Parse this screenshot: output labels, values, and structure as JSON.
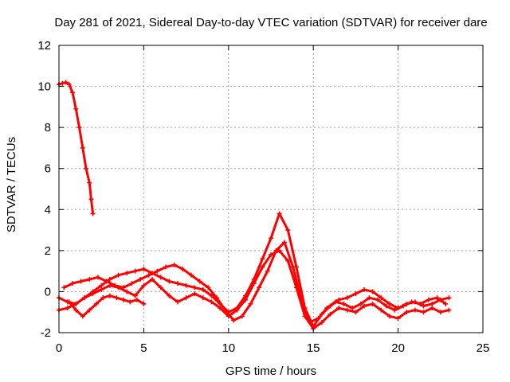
{
  "chart_data": {
    "type": "scatter",
    "title": "Day 281 of 2021, Sidereal Day-to-day VTEC variation (SDTVAR) for receiver dare",
    "xlabel": "GPS time / hours",
    "ylabel": "SDTVAR / TECUs",
    "xlim": [
      0,
      25
    ],
    "ylim": [
      -2,
      12
    ],
    "xticks": [
      0,
      5,
      10,
      15,
      20,
      25
    ],
    "yticks": [
      -2,
      0,
      2,
      4,
      6,
      8,
      10,
      12
    ],
    "grid": true,
    "marker": "+",
    "series": [
      {
        "name": "sdtvar",
        "color": "#ff0000",
        "tracks": [
          {
            "x": [
              0.0,
              0.2,
              0.4,
              0.6,
              0.8,
              1.0,
              1.2,
              1.4,
              1.6,
              1.8,
              1.9,
              2.0
            ],
            "y": [
              10.1,
              10.15,
              10.2,
              10.1,
              9.7,
              8.9,
              8.0,
              7.0,
              6.0,
              5.3,
              4.5,
              3.8
            ]
          },
          {
            "x": [
              0.0,
              0.5,
              1.0,
              1.5,
              2.0,
              2.5,
              3.0,
              3.5,
              4.0,
              4.5,
              5.0,
              5.5,
              6.0,
              6.5,
              7.0,
              7.5,
              8.0,
              8.5,
              9.0,
              9.5,
              10.0,
              10.5,
              11.0,
              11.5,
              12.0,
              12.5,
              13.0,
              13.5,
              14.0,
              14.5,
              15.0,
              15.5,
              16.0,
              16.5,
              17.0,
              17.5,
              18.0,
              18.5,
              19.0,
              19.5,
              20.0,
              20.5,
              21.0,
              21.5,
              22.0,
              22.5,
              23.0
            ],
            "y": [
              -0.3,
              -0.5,
              -0.6,
              -0.3,
              0.0,
              0.3,
              0.6,
              0.8,
              0.9,
              1.0,
              1.1,
              0.9,
              0.7,
              0.5,
              0.4,
              0.3,
              0.2,
              0.1,
              -0.2,
              -0.6,
              -1.0,
              -0.8,
              -0.2,
              0.6,
              1.6,
              2.6,
              3.8,
              3.0,
              1.2,
              -0.8,
              -1.7,
              -1.1,
              -0.7,
              -0.4,
              -0.3,
              -0.1,
              0.1,
              0.0,
              -0.3,
              -0.6,
              -0.8,
              -0.6,
              -0.5,
              -0.7,
              -0.6,
              -0.4,
              -0.3
            ]
          },
          {
            "x": [
              0.3,
              0.8,
              1.3,
              1.8,
              2.3,
              2.8,
              3.3,
              3.8,
              4.3,
              4.8,
              5.3,
              5.8,
              6.3,
              6.8,
              7.3,
              7.8,
              8.3,
              8.8,
              9.3,
              9.8,
              10.3,
              10.8,
              11.3,
              11.8,
              12.3,
              12.8,
              13.3,
              13.8,
              14.3,
              14.8,
              15.3,
              15.8,
              16.3,
              16.8,
              17.3,
              17.8,
              18.3,
              18.8,
              19.3,
              19.8,
              20.3,
              20.8,
              21.3,
              21.8,
              22.3,
              22.8
            ],
            "y": [
              0.2,
              0.4,
              0.5,
              0.6,
              0.7,
              0.5,
              0.3,
              0.2,
              0.4,
              0.6,
              0.8,
              1.0,
              1.2,
              1.3,
              1.1,
              0.8,
              0.5,
              0.2,
              -0.3,
              -0.9,
              -1.4,
              -1.2,
              -0.6,
              0.2,
              1.0,
              2.0,
              2.4,
              1.2,
              -0.4,
              -1.5,
              -1.3,
              -0.8,
              -0.5,
              -0.6,
              -0.8,
              -0.6,
              -0.3,
              -0.4,
              -0.7,
              -0.9,
              -0.7,
              -0.5,
              -0.6,
              -0.4,
              -0.3,
              -0.6
            ]
          },
          {
            "x": [
              0.0,
              0.5,
              1.0,
              1.5,
              2.0,
              2.5,
              3.0,
              3.5,
              4.0,
              4.5,
              5.0,
              5.5,
              6.0,
              6.5,
              7.0,
              7.5,
              8.0,
              8.5,
              9.0,
              9.5,
              10.0,
              10.5,
              11.0,
              11.5,
              12.0,
              12.5,
              13.0,
              13.5,
              14.0,
              14.5,
              15.0,
              15.5,
              16.0,
              16.5,
              17.0,
              17.5,
              18.0,
              18.5,
              19.0,
              19.5,
              20.0,
              20.5,
              21.0,
              21.5,
              22.0,
              22.5,
              23.0
            ],
            "y": [
              -0.9,
              -0.8,
              -0.6,
              -0.3,
              -0.1,
              0.1,
              0.3,
              0.2,
              0.0,
              -0.2,
              0.3,
              0.6,
              0.2,
              -0.2,
              -0.5,
              -0.3,
              -0.1,
              -0.3,
              -0.5,
              -0.8,
              -1.2,
              -0.9,
              -0.4,
              0.4,
              1.2,
              1.8,
              2.0,
              1.5,
              0.2,
              -1.2,
              -1.8,
              -1.5,
              -1.1,
              -0.8,
              -0.9,
              -1.0,
              -0.7,
              -0.6,
              -0.9,
              -1.2,
              -1.3,
              -1.0,
              -0.9,
              -1.0,
              -0.8,
              -1.0,
              -0.9
            ]
          },
          {
            "x": [
              0.6,
              1.0,
              1.4,
              1.8,
              2.2,
              2.6,
              3.0,
              3.4,
              3.8,
              4.2,
              4.6,
              5.0
            ],
            "y": [
              -0.5,
              -0.9,
              -1.2,
              -0.9,
              -0.6,
              -0.3,
              -0.2,
              -0.3,
              -0.4,
              -0.5,
              -0.4,
              -0.6
            ]
          }
        ]
      }
    ]
  }
}
